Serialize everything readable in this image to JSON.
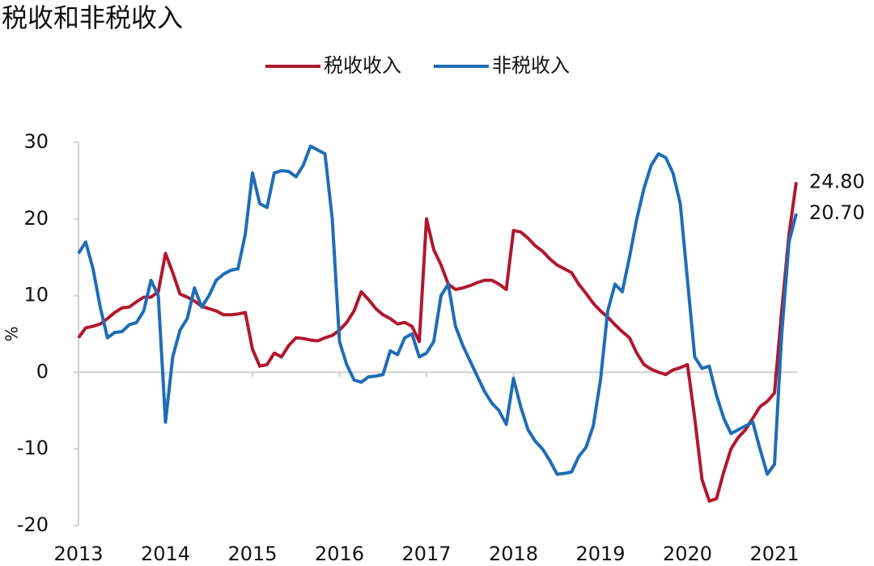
{
  "chart_data": {
    "type": "line",
    "title": "税收和非税收入",
    "ylabel": "%",
    "x": [
      2013,
      2013.083,
      2013.167,
      2013.25,
      2013.333,
      2013.417,
      2013.5,
      2013.583,
      2013.667,
      2013.75,
      2013.833,
      2013.917,
      2014,
      2014.083,
      2014.167,
      2014.25,
      2014.333,
      2014.417,
      2014.5,
      2014.583,
      2014.667,
      2014.75,
      2014.833,
      2014.917,
      2015,
      2015.083,
      2015.167,
      2015.25,
      2015.333,
      2015.417,
      2015.5,
      2015.583,
      2015.667,
      2015.75,
      2015.833,
      2015.917,
      2016,
      2016.083,
      2016.167,
      2016.25,
      2016.333,
      2016.417,
      2016.5,
      2016.583,
      2016.667,
      2016.75,
      2016.833,
      2016.917,
      2017,
      2017.083,
      2017.167,
      2017.25,
      2017.333,
      2017.417,
      2017.5,
      2017.583,
      2017.667,
      2017.75,
      2017.833,
      2017.917,
      2018,
      2018.083,
      2018.167,
      2018.25,
      2018.333,
      2018.417,
      2018.5,
      2018.583,
      2018.667,
      2018.75,
      2018.833,
      2018.917,
      2019,
      2019.083,
      2019.167,
      2019.25,
      2019.333,
      2019.417,
      2019.5,
      2019.583,
      2019.667,
      2019.75,
      2019.833,
      2019.917,
      2020,
      2020.083,
      2020.167,
      2020.25,
      2020.333,
      2020.417,
      2020.5,
      2020.583,
      2020.667,
      2020.75,
      2020.833,
      2020.917,
      2021,
      2021.083,
      2021.167,
      2021.25
    ],
    "series": [
      {
        "name": "税收收入",
        "color": "#b0182f",
        "values": [
          4.5,
          5.8,
          6,
          6.3,
          7,
          7.8,
          8.4,
          8.5,
          9.2,
          9.8,
          9.8,
          10.5,
          15.5,
          13,
          10.2,
          9.8,
          9.3,
          8.6,
          8.3,
          8,
          7.5,
          7.5,
          7.6,
          7.8,
          3,
          0.8,
          1,
          2.5,
          2,
          3.5,
          4.5,
          4.4,
          4.2,
          4.1,
          4.5,
          4.8,
          5.5,
          6.5,
          8,
          10.5,
          9.5,
          8.3,
          7.5,
          7,
          6.3,
          6.5,
          6,
          4,
          20,
          16,
          14,
          11.5,
          10.8,
          11,
          11.3,
          11.7,
          12,
          12,
          11.5,
          10.8,
          18.5,
          18.3,
          17.5,
          16.5,
          15.8,
          14.8,
          14,
          13.5,
          13,
          11.5,
          10.3,
          9,
          8,
          7.2,
          6.2,
          5.3,
          4.5,
          2.5,
          1,
          0.4,
          0,
          -0.3,
          0.3,
          0.6,
          1,
          -6,
          -14,
          -16.8,
          -16.5,
          -13,
          -10,
          -8.5,
          -7.5,
          -6,
          -4.5,
          -3.8,
          -2.7,
          8,
          18,
          24.8
        ],
        "value_labels": [
          null,
          null,
          null,
          null,
          null,
          null,
          null,
          null,
          null,
          null,
          null,
          null,
          null,
          null,
          null,
          null,
          null,
          null,
          null,
          null,
          null,
          null,
          null,
          null,
          null,
          null,
          null,
          null,
          null,
          null,
          null,
          null,
          null,
          null,
          null,
          null,
          null,
          null,
          null,
          null,
          null,
          null,
          null,
          null,
          null,
          null,
          null,
          null,
          null,
          null,
          null,
          null,
          null,
          null,
          null,
          null,
          null,
          null,
          null,
          null,
          null,
          null,
          null,
          null,
          null,
          null,
          null,
          null,
          null,
          null,
          null,
          null,
          null,
          null,
          null,
          null,
          null,
          null,
          null,
          null,
          null,
          null,
          null,
          null,
          null,
          null,
          null,
          null,
          null,
          null,
          null,
          null,
          null,
          null,
          null,
          null,
          null,
          null,
          null,
          "24.80"
        ]
      },
      {
        "name": "非税收入",
        "color": "#1f6db5",
        "values": [
          15.5,
          17,
          13.5,
          8.5,
          4.5,
          5.2,
          5.3,
          6.2,
          6.5,
          8,
          12,
          10,
          -6.5,
          2,
          5.5,
          7,
          11,
          8.5,
          10,
          12,
          12.8,
          13.3,
          13.5,
          18,
          26,
          22,
          21.5,
          26,
          26.3,
          26.2,
          25.5,
          27,
          29.5,
          29,
          28.5,
          20,
          4,
          1,
          -1,
          -1.3,
          -0.6,
          -0.5,
          -0.3,
          2.8,
          2.3,
          4.5,
          5,
          2,
          2.5,
          4,
          10,
          11.5,
          6,
          3.5,
          1.5,
          -0.5,
          -2.5,
          -4,
          -5,
          -6.8,
          -0.8,
          -4.5,
          -7.5,
          -9,
          -10,
          -11.5,
          -13.3,
          -13.2,
          -13,
          -11,
          -9.8,
          -7,
          -1,
          8,
          11.5,
          10.5,
          15,
          20,
          24,
          27,
          28.5,
          28,
          26,
          22,
          12,
          2,
          0.5,
          0.8,
          -3,
          -6,
          -8,
          -7.5,
          -7,
          -6.5,
          -10,
          -13.3,
          -12,
          5,
          17,
          20.7
        ],
        "value_labels": [
          null,
          null,
          null,
          null,
          null,
          null,
          null,
          null,
          null,
          null,
          null,
          null,
          null,
          null,
          null,
          null,
          null,
          null,
          null,
          null,
          null,
          null,
          null,
          null,
          null,
          null,
          null,
          null,
          null,
          null,
          null,
          null,
          null,
          null,
          null,
          null,
          null,
          null,
          null,
          null,
          null,
          null,
          null,
          null,
          null,
          null,
          null,
          null,
          null,
          null,
          null,
          null,
          null,
          null,
          null,
          null,
          null,
          null,
          null,
          null,
          null,
          null,
          null,
          null,
          null,
          null,
          null,
          null,
          null,
          null,
          null,
          null,
          null,
          null,
          null,
          null,
          null,
          null,
          null,
          null,
          null,
          null,
          null,
          null,
          null,
          null,
          null,
          null,
          null,
          null,
          null,
          null,
          null,
          null,
          null,
          null,
          null,
          null,
          null,
          "20.70"
        ]
      }
    ],
    "xlim": [
      2013,
      2021.26
    ],
    "xticks": [
      2013,
      2014,
      2015,
      2016,
      2017,
      2018,
      2019,
      2020,
      2021
    ],
    "ylim": [
      -20,
      30
    ],
    "yticks": [
      -20,
      -10,
      0,
      10,
      20,
      30
    ],
    "legend": "top"
  }
}
